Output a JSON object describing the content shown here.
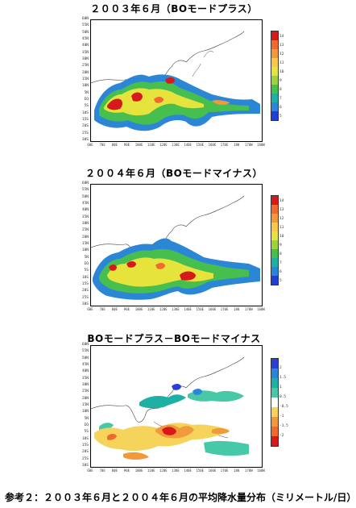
{
  "panels": [
    {
      "title": "２００３年６月（BOモードプラス）",
      "colorbar_labels": [
        "14",
        "13",
        "12",
        "11",
        "10",
        "9",
        "8",
        "7",
        "6",
        "5"
      ],
      "colors": [
        "#d7191c",
        "#ef6a2c",
        "#f29a3b",
        "#f6c94a",
        "#e6e43c",
        "#9ed43b",
        "#47bf4f",
        "#1db0a5",
        "#2b87d6",
        "#1f3fd6"
      ]
    },
    {
      "title": "２００４年６月（BOモードマイナス）",
      "colorbar_labels": [
        "14",
        "13",
        "12",
        "11",
        "10",
        "9",
        "8",
        "7",
        "6",
        "5"
      ],
      "colors": [
        "#d7191c",
        "#ef6a2c",
        "#f29a3b",
        "#f6c94a",
        "#e6e43c",
        "#9ed43b",
        "#47bf4f",
        "#1db0a5",
        "#2b87d6",
        "#1f3fd6"
      ]
    },
    {
      "title": "BOモードプラス－BOモードマイナス",
      "colorbar_labels": [
        "2",
        "1.5",
        "1",
        "0.5",
        "-0.5",
        "-1",
        "-1.5",
        "-2"
      ],
      "colors": [
        "#2b3fd6",
        "#2b87d6",
        "#1db0a5",
        "#47c9a8",
        "#ffffff",
        "#f6d35a",
        "#f29a3b",
        "#ef6a2c",
        "#d7191c"
      ]
    }
  ],
  "latitudes": [
    "60N",
    "55N",
    "50N",
    "45N",
    "40N",
    "35N",
    "30N",
    "25N",
    "20N",
    "15N",
    "10N",
    "5N",
    "EQ",
    "5S",
    "10S",
    "15S",
    "20S",
    "25S",
    "30S"
  ],
  "longitudes": [
    "60E",
    "70E",
    "80E",
    "90E",
    "100E",
    "110E",
    "120E",
    "130E",
    "140E",
    "150E",
    "160E",
    "170E",
    "180",
    "170W",
    "160W"
  ],
  "caption": "参考２：２００３年６月と２００４年６月の平均降水量分布（ミリメートル/日）"
}
